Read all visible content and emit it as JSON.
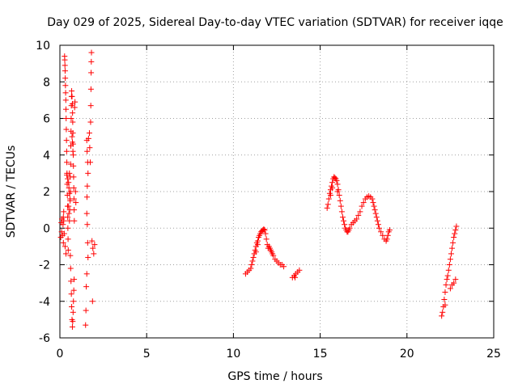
{
  "chart_data": {
    "type": "scatter",
    "title": "Day 029 of 2025, Sidereal Day-to-day VTEC variation (SDTVAR) for receiver iqqe",
    "xlabel": "GPS time / hours",
    "ylabel": "SDTVAR / TECUs",
    "xlim": [
      0,
      25
    ],
    "ylim": [
      -6,
      10
    ],
    "xticks": [
      0,
      5,
      10,
      15,
      20,
      25
    ],
    "yticks": [
      -6,
      -4,
      -2,
      0,
      2,
      4,
      6,
      8,
      10
    ],
    "grid": true,
    "marker": "+",
    "color": "#ff0000",
    "series": [
      {
        "name": "SDTVAR",
        "points": [
          [
            0.05,
            -0.5
          ],
          [
            0.08,
            0.3
          ],
          [
            0.1,
            -0.2
          ],
          [
            0.12,
            0.5
          ],
          [
            0.15,
            -0.4
          ],
          [
            0.18,
            0.2
          ],
          [
            0.2,
            -0.8
          ],
          [
            0.22,
            0.4
          ],
          [
            0.25,
            -0.3
          ],
          [
            0.27,
            9.4
          ],
          [
            0.28,
            9.2
          ],
          [
            0.29,
            8.9
          ],
          [
            0.3,
            8.6
          ],
          [
            0.31,
            8.2
          ],
          [
            0.32,
            7.8
          ],
          [
            0.33,
            7.4
          ],
          [
            0.34,
            7.0
          ],
          [
            0.35,
            6.5
          ],
          [
            0.36,
            6.0
          ],
          [
            0.37,
            5.4
          ],
          [
            0.38,
            4.8
          ],
          [
            0.39,
            4.2
          ],
          [
            0.4,
            3.6
          ],
          [
            0.41,
            3.0
          ],
          [
            0.42,
            2.4
          ],
          [
            0.43,
            1.8
          ],
          [
            0.44,
            1.2
          ],
          [
            0.45,
            0.6
          ],
          [
            0.46,
            0.0
          ],
          [
            0.47,
            -0.6
          ],
          [
            0.48,
            -1.2
          ],
          [
            0.3,
            -1.0
          ],
          [
            0.35,
            -1.4
          ],
          [
            0.4,
            2.9
          ],
          [
            0.45,
            2.7
          ],
          [
            0.5,
            2.5
          ],
          [
            0.52,
            2.2
          ],
          [
            0.55,
            1.9
          ],
          [
            0.58,
            1.6
          ],
          [
            0.6,
            2.8
          ],
          [
            0.62,
            3.5
          ],
          [
            0.63,
            4.5
          ],
          [
            0.64,
            5.3
          ],
          [
            0.65,
            6.0
          ],
          [
            0.66,
            6.7
          ],
          [
            0.67,
            7.2
          ],
          [
            0.68,
            7.5
          ],
          [
            0.7,
            7.2
          ],
          [
            0.72,
            6.8
          ],
          [
            0.73,
            6.3
          ],
          [
            0.74,
            5.8
          ],
          [
            0.75,
            5.2
          ],
          [
            0.76,
            4.6
          ],
          [
            0.77,
            4.0
          ],
          [
            0.78,
            3.4
          ],
          [
            0.79,
            2.8
          ],
          [
            0.8,
            2.2
          ],
          [
            0.81,
            1.6
          ],
          [
            0.82,
            1.0
          ],
          [
            0.83,
            0.4
          ],
          [
            0.6,
            -1.5
          ],
          [
            0.62,
            -2.2
          ],
          [
            0.64,
            -2.9
          ],
          [
            0.66,
            -3.6
          ],
          [
            0.68,
            -4.3
          ],
          [
            0.7,
            -5.0
          ],
          [
            0.72,
            -5.4
          ],
          [
            0.74,
            -5.1
          ],
          [
            0.76,
            -4.6
          ],
          [
            0.78,
            -4.0
          ],
          [
            0.8,
            -3.4
          ],
          [
            0.82,
            -2.8
          ],
          [
            0.55,
            0.4
          ],
          [
            0.57,
            1.0
          ],
          [
            0.59,
            1.5
          ],
          [
            0.61,
            2.0
          ],
          [
            0.85,
            6.6
          ],
          [
            0.87,
            6.9
          ],
          [
            0.9,
            2.0
          ],
          [
            0.92,
            1.4
          ],
          [
            0.7,
            5.0
          ],
          [
            0.72,
            4.7
          ],
          [
            0.75,
            4.2
          ],
          [
            0.55,
            3.0
          ],
          [
            0.5,
            1.2
          ],
          [
            0.52,
            0.8
          ],
          [
            0.2,
            0.6
          ],
          [
            0.22,
            0.9
          ],
          [
            1.55,
            4.8
          ],
          [
            1.57,
            4.2
          ],
          [
            1.6,
            3.6
          ],
          [
            1.62,
            3.0
          ],
          [
            1.58,
            2.3
          ],
          [
            1.56,
            1.7
          ],
          [
            1.55,
            0.8
          ],
          [
            1.58,
            0.2
          ],
          [
            1.6,
            -0.8
          ],
          [
            1.62,
            -1.6
          ],
          [
            1.55,
            -2.5
          ],
          [
            1.52,
            -3.2
          ],
          [
            1.5,
            -4.5
          ],
          [
            1.48,
            -5.3
          ],
          [
            1.65,
            4.9
          ],
          [
            1.7,
            5.2
          ],
          [
            1.72,
            4.4
          ],
          [
            1.75,
            3.6
          ],
          [
            1.78,
            6.7
          ],
          [
            1.79,
            7.6
          ],
          [
            1.8,
            8.5
          ],
          [
            1.81,
            9.1
          ],
          [
            1.82,
            9.6
          ],
          [
            1.77,
            5.8
          ],
          [
            1.85,
            -0.7
          ],
          [
            1.9,
            -1.1
          ],
          [
            1.95,
            -1.4
          ],
          [
            2.0,
            -0.9
          ],
          [
            1.88,
            -4.0
          ],
          [
            10.7,
            -2.5
          ],
          [
            10.8,
            -2.4
          ],
          [
            10.9,
            -2.3
          ],
          [
            11.0,
            -2.2
          ],
          [
            11.05,
            -2.0
          ],
          [
            11.1,
            -1.8
          ],
          [
            11.15,
            -1.6
          ],
          [
            11.2,
            -1.4
          ],
          [
            11.25,
            -1.2
          ],
          [
            11.3,
            -1.0
          ],
          [
            11.35,
            -0.8
          ],
          [
            11.4,
            -0.7
          ],
          [
            11.45,
            -0.5
          ],
          [
            11.5,
            -0.4
          ],
          [
            11.55,
            -0.3
          ],
          [
            11.6,
            -0.2
          ],
          [
            11.65,
            -0.15
          ],
          [
            11.7,
            -0.1
          ],
          [
            11.75,
            -0.05
          ],
          [
            11.8,
            -0.1
          ],
          [
            11.85,
            -0.3
          ],
          [
            11.9,
            -0.6
          ],
          [
            11.95,
            -0.9
          ],
          [
            12.0,
            -1.1
          ],
          [
            12.05,
            -1.0
          ],
          [
            12.1,
            -1.1
          ],
          [
            12.15,
            -1.2
          ],
          [
            12.2,
            -1.3
          ],
          [
            12.25,
            -1.4
          ],
          [
            12.3,
            -1.5
          ],
          [
            12.4,
            -1.7
          ],
          [
            12.5,
            -1.8
          ],
          [
            12.6,
            -1.9
          ],
          [
            12.7,
            -2.0
          ],
          [
            12.8,
            -2.0
          ],
          [
            12.9,
            -2.1
          ],
          [
            11.3,
            -1.3
          ],
          [
            11.4,
            -0.9
          ],
          [
            13.4,
            -2.7
          ],
          [
            13.5,
            -2.6
          ],
          [
            13.6,
            -2.5
          ],
          [
            13.7,
            -2.4
          ],
          [
            13.8,
            -2.3
          ],
          [
            13.55,
            -2.7
          ],
          [
            15.4,
            1.1
          ],
          [
            15.45,
            1.3
          ],
          [
            15.5,
            1.6
          ],
          [
            15.55,
            1.9
          ],
          [
            15.6,
            2.1
          ],
          [
            15.65,
            2.3
          ],
          [
            15.7,
            2.5
          ],
          [
            15.75,
            2.7
          ],
          [
            15.8,
            2.8
          ],
          [
            15.85,
            2.75
          ],
          [
            15.9,
            2.7
          ],
          [
            15.95,
            2.6
          ],
          [
            16.0,
            2.4
          ],
          [
            16.05,
            2.1
          ],
          [
            16.1,
            1.8
          ],
          [
            16.15,
            1.5
          ],
          [
            16.2,
            1.2
          ],
          [
            16.25,
            0.9
          ],
          [
            16.3,
            0.6
          ],
          [
            16.35,
            0.4
          ],
          [
            16.4,
            0.2
          ],
          [
            16.45,
            0.0
          ],
          [
            16.5,
            -0.1
          ],
          [
            16.55,
            -0.2
          ],
          [
            16.6,
            -0.2
          ],
          [
            16.65,
            -0.1
          ],
          [
            16.7,
            0.0
          ],
          [
            16.8,
            0.2
          ],
          [
            16.9,
            0.3
          ],
          [
            17.0,
            0.4
          ],
          [
            17.1,
            0.5
          ],
          [
            17.2,
            0.7
          ],
          [
            17.3,
            0.9
          ],
          [
            17.4,
            1.2
          ],
          [
            17.5,
            1.4
          ],
          [
            17.6,
            1.6
          ],
          [
            17.7,
            1.7
          ],
          [
            17.8,
            1.75
          ],
          [
            17.9,
            1.7
          ],
          [
            18.0,
            1.6
          ],
          [
            18.05,
            1.4
          ],
          [
            18.1,
            1.2
          ],
          [
            18.15,
            1.0
          ],
          [
            18.2,
            0.8
          ],
          [
            18.25,
            0.6
          ],
          [
            18.3,
            0.4
          ],
          [
            18.35,
            0.2
          ],
          [
            18.4,
            0.0
          ],
          [
            18.5,
            -0.2
          ],
          [
            18.6,
            -0.4
          ],
          [
            18.7,
            -0.6
          ],
          [
            18.8,
            -0.7
          ],
          [
            18.85,
            -0.6
          ],
          [
            18.9,
            -0.4
          ],
          [
            18.95,
            -0.2
          ],
          [
            19.0,
            -0.1
          ],
          [
            15.6,
            1.8
          ],
          [
            15.7,
            2.2
          ],
          [
            16.0,
            2.0
          ],
          [
            22.0,
            -4.8
          ],
          [
            22.05,
            -4.6
          ],
          [
            22.1,
            -4.3
          ],
          [
            22.15,
            -3.9
          ],
          [
            22.2,
            -3.5
          ],
          [
            22.25,
            -3.1
          ],
          [
            22.3,
            -2.8
          ],
          [
            22.35,
            -2.6
          ],
          [
            22.4,
            -2.3
          ],
          [
            22.45,
            -2.0
          ],
          [
            22.5,
            -1.7
          ],
          [
            22.55,
            -1.4
          ],
          [
            22.6,
            -1.1
          ],
          [
            22.65,
            -0.8
          ],
          [
            22.7,
            -0.5
          ],
          [
            22.75,
            -0.3
          ],
          [
            22.8,
            -0.1
          ],
          [
            22.85,
            0.1
          ],
          [
            22.5,
            -3.3
          ],
          [
            22.6,
            -3.1
          ],
          [
            22.7,
            -3.0
          ],
          [
            22.8,
            -2.8
          ],
          [
            22.2,
            -4.2
          ]
        ]
      }
    ]
  }
}
